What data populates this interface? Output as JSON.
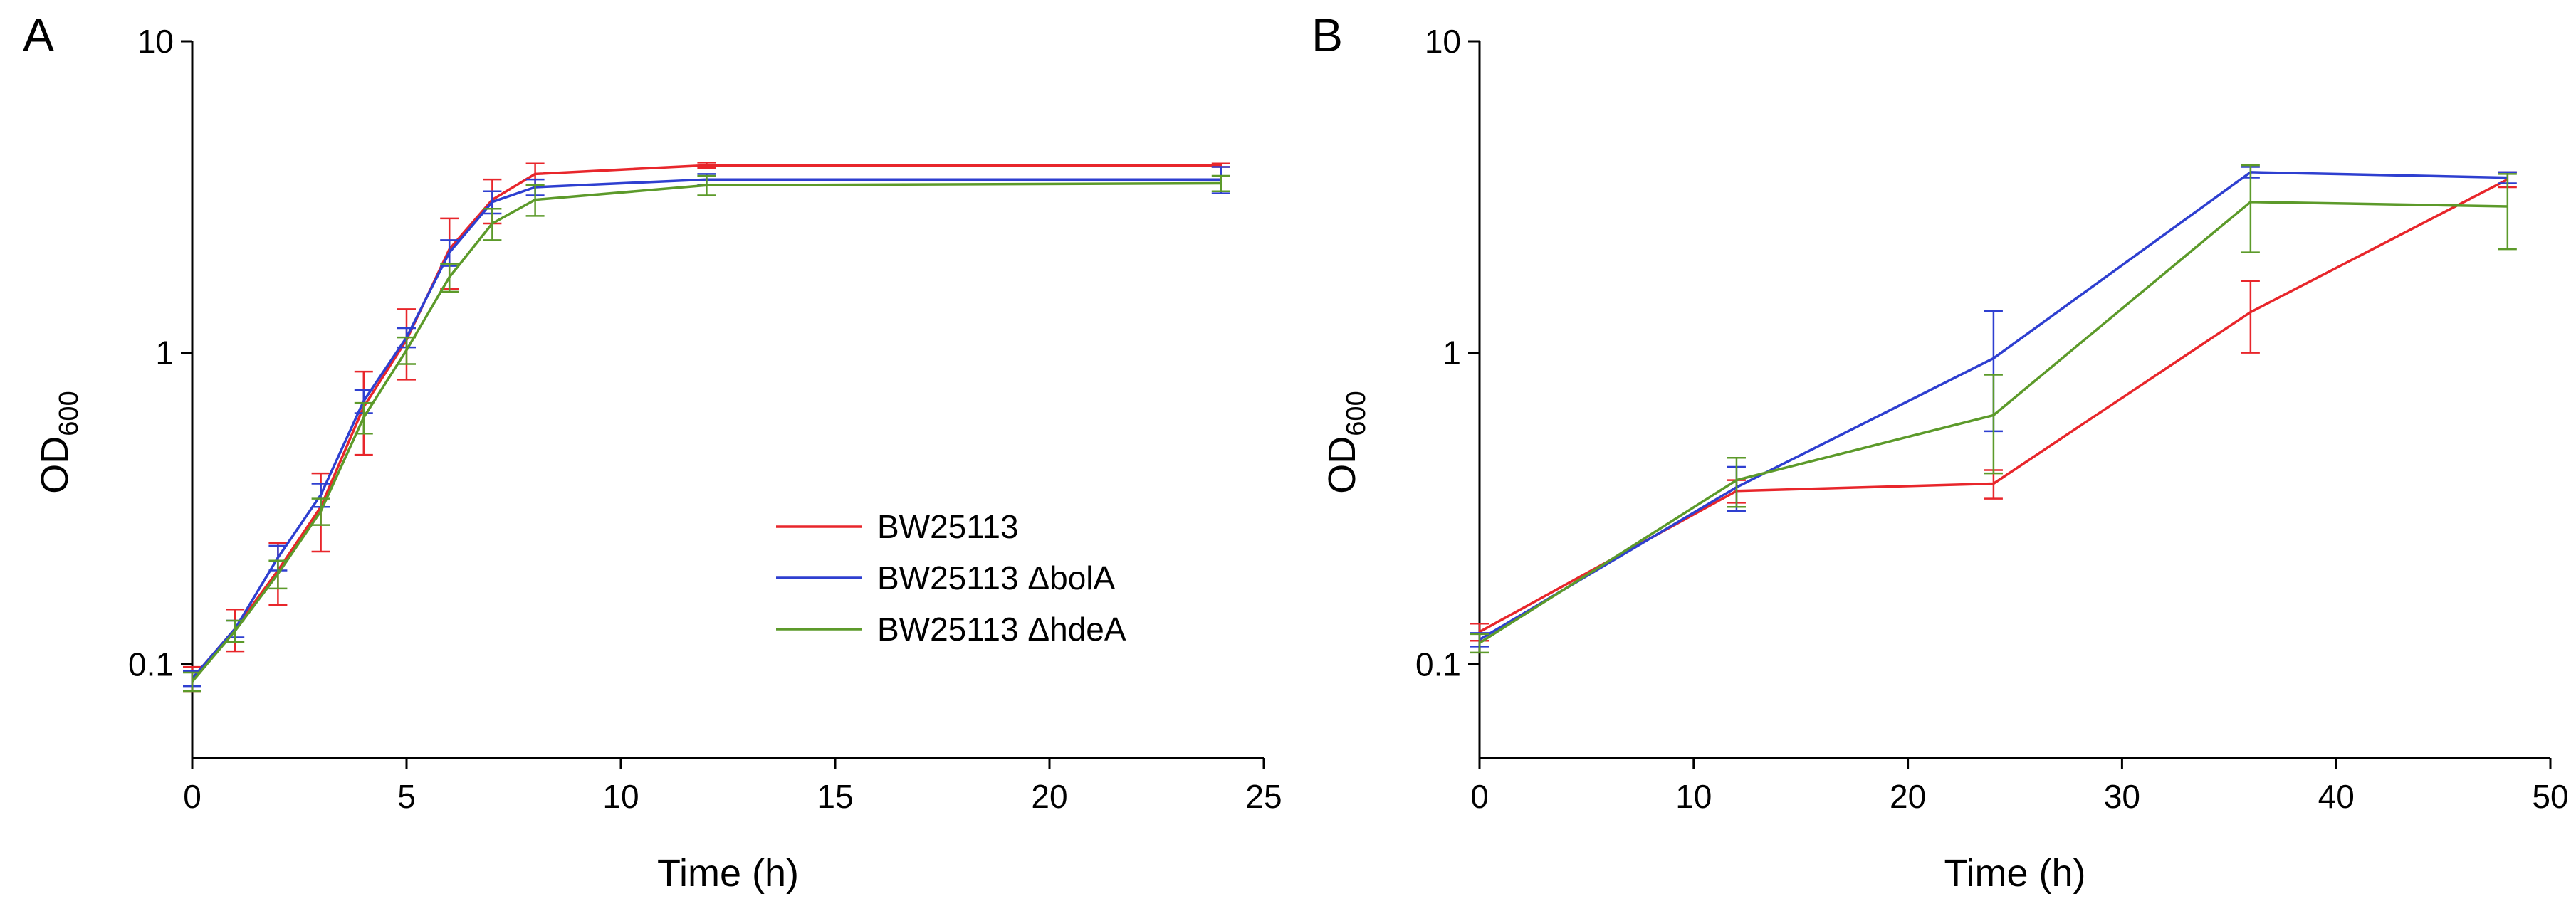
{
  "chart_data": [
    {
      "type": "line",
      "panel_label": "A",
      "xlabel": "Time (h)",
      "ylabel_main": "OD",
      "ylabel_sub": "600",
      "yscale": "log",
      "xlim": [
        0,
        25
      ],
      "ylim": [
        0.05,
        10
      ],
      "xticks": [
        0,
        5,
        10,
        15,
        20,
        25
      ],
      "xtick_labels": [
        "0",
        "5",
        "10",
        "15",
        "20",
        "25"
      ],
      "yticks": [
        0.1,
        1,
        10
      ],
      "ytick_labels": [
        "0.1",
        "1",
        "10"
      ],
      "legend_position": "center-right",
      "series": [
        {
          "name": "BW25113",
          "color": "#e8262b",
          "x": [
            0,
            1,
            2,
            3,
            4,
            5,
            6,
            7,
            8,
            12,
            24
          ],
          "y": [
            0.09,
            0.13,
            0.2,
            0.32,
            0.67,
            1.1,
            2.15,
            3.1,
            3.75,
            4.0,
            4.0
          ],
          "err": [
            0.008,
            0.02,
            0.045,
            0.09,
            0.2,
            0.28,
            0.55,
            0.5,
            0.3,
            0.08,
            0.05
          ]
        },
        {
          "name": "BW25113 ΔbolA",
          "color": "#2e3fd0",
          "x": [
            0,
            1,
            2,
            3,
            4,
            5,
            6,
            7,
            8,
            12,
            24
          ],
          "y": [
            0.09,
            0.13,
            0.22,
            0.35,
            0.7,
            1.12,
            2.1,
            3.05,
            3.4,
            3.6,
            3.6
          ],
          "err": [
            0.005,
            0.008,
            0.02,
            0.03,
            0.06,
            0.08,
            0.2,
            0.25,
            0.2,
            0.15,
            0.35
          ]
        },
        {
          "name": "BW25113 ΔhdeA",
          "color": "#5c9a2a",
          "x": [
            0,
            1,
            2,
            3,
            4,
            5,
            6,
            7,
            8,
            12,
            24
          ],
          "y": [
            0.088,
            0.128,
            0.195,
            0.31,
            0.62,
            1.02,
            1.75,
            2.6,
            3.1,
            3.45,
            3.5
          ],
          "err": [
            0.006,
            0.01,
            0.02,
            0.03,
            0.07,
            0.1,
            0.18,
            0.3,
            0.35,
            0.25,
            0.2
          ]
        }
      ]
    },
    {
      "type": "line",
      "panel_label": "B",
      "xlabel": "Time (h)",
      "ylabel_main": "OD",
      "ylabel_sub": "600",
      "yscale": "log",
      "xlim": [
        0,
        50
      ],
      "ylim": [
        0.05,
        10
      ],
      "xticks": [
        0,
        10,
        20,
        30,
        40,
        50
      ],
      "xtick_labels": [
        "0",
        "10",
        "20",
        "30",
        "40",
        "50"
      ],
      "yticks": [
        0.1,
        1,
        10
      ],
      "ytick_labels": [
        "0.1",
        "1",
        "10"
      ],
      "series": [
        {
          "name": "BW25113",
          "color": "#e8262b",
          "x": [
            0,
            12,
            24,
            36,
            48
          ],
          "y": [
            0.127,
            0.36,
            0.38,
            1.35,
            3.6
          ],
          "err": [
            0.008,
            0.03,
            0.04,
            0.35,
            0.2
          ]
        },
        {
          "name": "BW25113 ΔbolA",
          "color": "#2e3fd0",
          "x": [
            0,
            12,
            24,
            36,
            48
          ],
          "y": [
            0.12,
            0.37,
            0.96,
            3.8,
            3.65
          ],
          "err": [
            0.006,
            0.06,
            0.4,
            0.15,
            0.15
          ]
        },
        {
          "name": "BW25113 ΔhdeA",
          "color": "#5c9a2a",
          "x": [
            0,
            12,
            24,
            36,
            48
          ],
          "y": [
            0.117,
            0.39,
            0.63,
            3.05,
            2.95
          ],
          "err": [
            0.008,
            0.07,
            0.22,
            0.95,
            0.8
          ]
        }
      ]
    }
  ]
}
